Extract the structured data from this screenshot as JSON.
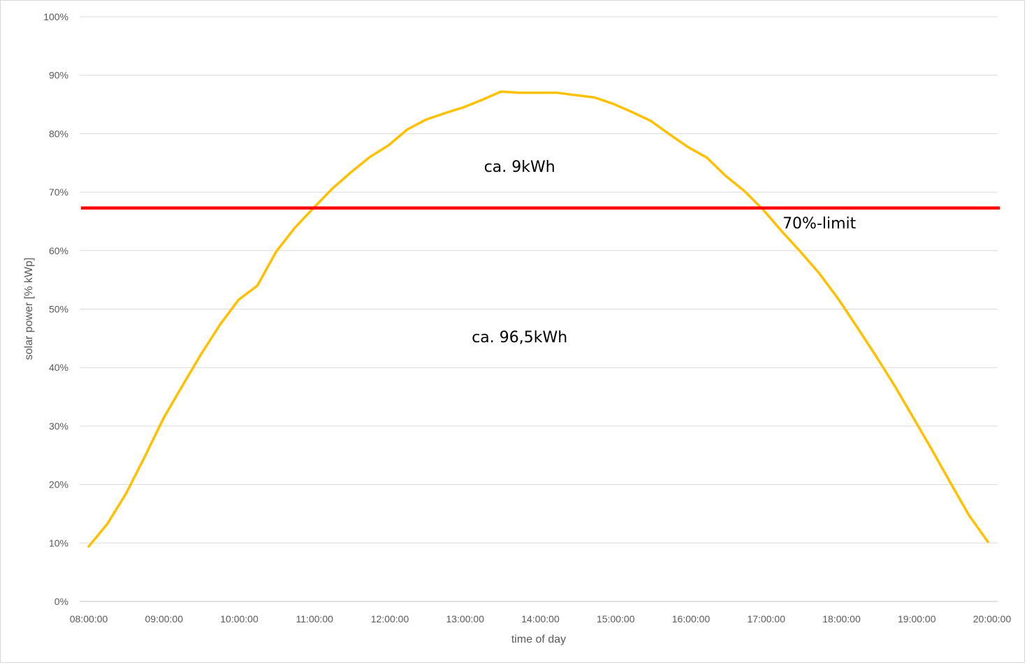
{
  "chart_data": {
    "type": "line",
    "xlabel": "time of day",
    "ylabel": "solar power [% kWp]",
    "ylim": [
      0,
      100
    ],
    "y_ticks": [
      "0%",
      "10%",
      "20%",
      "30%",
      "40%",
      "50%",
      "60%",
      "70%",
      "80%",
      "90%",
      "100%"
    ],
    "x_ticks": [
      "08:00:00",
      "09:00:00",
      "10:00:00",
      "11:00:00",
      "12:00:00",
      "13:00:00",
      "14:00:00",
      "15:00:00",
      "16:00:00",
      "17:00:00",
      "18:00:00",
      "19:00:00",
      "20:00:00"
    ],
    "xlim": [
      "08:00:00",
      "20:00:00"
    ],
    "grid": true,
    "legend": "none",
    "series": [
      {
        "color": "#FFC000",
        "points": [
          [
            "08:00:00",
            9.4
          ],
          [
            "08:15:00",
            13.3
          ],
          [
            "08:30:00",
            18.5
          ],
          [
            "08:45:00",
            24.8
          ],
          [
            "09:00:00",
            31.4
          ],
          [
            "09:15:00",
            36.9
          ],
          [
            "09:30:00",
            42.3
          ],
          [
            "09:45:00",
            47.3
          ],
          [
            "10:00:00",
            51.6
          ],
          [
            "10:15:00",
            54.0
          ],
          [
            "10:30:00",
            59.8
          ],
          [
            "10:45:00",
            63.9
          ],
          [
            "11:00:00",
            67.3
          ],
          [
            "11:15:00",
            70.6
          ],
          [
            "11:30:00",
            73.4
          ],
          [
            "11:45:00",
            76.0
          ],
          [
            "12:00:00",
            78.0
          ],
          [
            "12:15:00",
            80.7
          ],
          [
            "12:30:00",
            82.4
          ],
          [
            "12:45:00",
            83.5
          ],
          [
            "13:00:00",
            84.5
          ],
          [
            "13:15:00",
            85.8
          ],
          [
            "13:30:00",
            87.2
          ],
          [
            "13:45:00",
            87.0
          ],
          [
            "14:00:00",
            87.0
          ],
          [
            "14:15:00",
            87.0
          ],
          [
            "14:30:00",
            86.6
          ],
          [
            "14:45:00",
            86.2
          ],
          [
            "15:00:00",
            85.1
          ],
          [
            "15:15:00",
            83.7
          ],
          [
            "15:30:00",
            82.2
          ],
          [
            "15:45:00",
            79.9
          ],
          [
            "16:00:00",
            77.7
          ],
          [
            "16:15:00",
            75.9
          ],
          [
            "16:30:00",
            72.8
          ],
          [
            "16:45:00",
            70.2
          ],
          [
            "17:00:00",
            67.0
          ],
          [
            "17:15:00",
            63.3
          ],
          [
            "17:30:00",
            59.8
          ],
          [
            "17:45:00",
            56.1
          ],
          [
            "18:00:00",
            51.8
          ],
          [
            "18:15:00",
            47.0
          ],
          [
            "18:30:00",
            42.1
          ],
          [
            "18:45:00",
            37.0
          ],
          [
            "19:00:00",
            31.5
          ],
          [
            "19:15:00",
            26.0
          ],
          [
            "19:30:00",
            20.3
          ],
          [
            "19:45:00",
            14.7
          ],
          [
            "20:00:00",
            10.2
          ]
        ]
      }
    ],
    "limit_line": {
      "y": 67.3,
      "color": "#FF0000",
      "label": "70%-limit"
    },
    "annotations": [
      {
        "text": "ca. 9kWh",
        "time": "13:45:00",
        "y": 73.5
      },
      {
        "text": "ca. 96,5kWh",
        "time": "13:45:00",
        "y": 44.3
      },
      {
        "text": "70%-limit",
        "time": "17:45:00",
        "y": 63.8
      }
    ],
    "colors": {
      "gridline": "#d9d9d9",
      "axis": "#bfbfbf"
    }
  }
}
